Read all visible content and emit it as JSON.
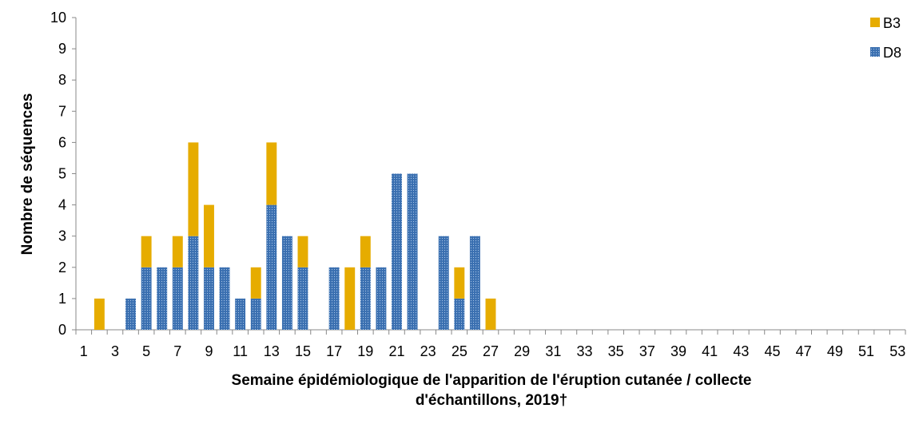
{
  "chart_data": {
    "type": "bar",
    "stacked": true,
    "x": [
      1,
      2,
      3,
      4,
      5,
      6,
      7,
      8,
      9,
      10,
      11,
      12,
      13,
      14,
      15,
      16,
      17,
      18,
      19,
      20,
      21,
      22,
      23,
      24,
      25,
      26,
      27,
      28,
      29,
      30,
      31,
      32,
      33,
      34,
      35,
      36,
      37,
      38,
      39,
      40,
      41,
      42,
      43,
      44,
      45,
      46,
      47,
      48,
      49,
      50,
      51,
      52,
      53
    ],
    "x_tick_labels": [
      "1",
      "3",
      "5",
      "7",
      "9",
      "11",
      "13",
      "15",
      "17",
      "19",
      "21",
      "23",
      "25",
      "27",
      "29",
      "31",
      "33",
      "35",
      "37",
      "39",
      "41",
      "43",
      "45",
      "47",
      "49",
      "51",
      "53"
    ],
    "series": [
      {
        "name": "D8",
        "color": "#3a6fb0",
        "pattern": "dotted",
        "values": [
          0,
          0,
          0,
          1,
          2,
          2,
          2,
          3,
          2,
          2,
          1,
          1,
          4,
          3,
          2,
          0,
          2,
          0,
          2,
          2,
          5,
          5,
          0,
          3,
          1,
          3,
          0,
          0,
          0,
          0,
          0,
          0,
          0,
          0,
          0,
          0,
          0,
          0,
          0,
          0,
          0,
          0,
          0,
          0,
          0,
          0,
          0,
          0,
          0,
          0,
          0,
          0,
          0
        ]
      },
      {
        "name": "B3",
        "color": "#e6ac00",
        "pattern": "solid",
        "values": [
          0,
          1,
          0,
          0,
          1,
          0,
          1,
          3,
          2,
          0,
          0,
          1,
          2,
          0,
          1,
          0,
          0,
          2,
          1,
          0,
          0,
          0,
          0,
          0,
          1,
          0,
          1,
          0,
          0,
          0,
          0,
          0,
          0,
          0,
          0,
          0,
          0,
          0,
          0,
          0,
          0,
          0,
          0,
          0,
          0,
          0,
          0,
          0,
          0,
          0,
          0,
          0,
          0
        ]
      }
    ],
    "legend_order": [
      "B3",
      "D8"
    ],
    "legend_position": "top-right",
    "ylim": [
      0,
      10
    ],
    "y_ticks": [
      0,
      1,
      2,
      3,
      4,
      5,
      6,
      7,
      8,
      9,
      10
    ],
    "ylabel": "Nombre de séquences",
    "xlabel_line1": "Semaine épidémiologique de l'apparition de l'éruption cutanée / collecte",
    "xlabel_line2": "d'échantillons, 2019†",
    "grid": false
  }
}
